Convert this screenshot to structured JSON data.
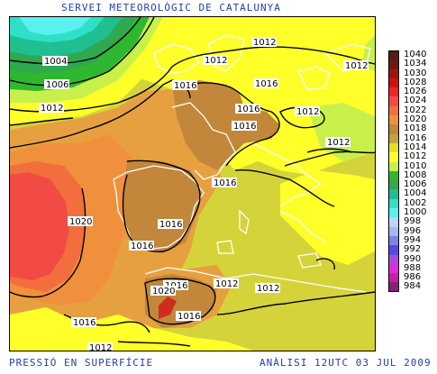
{
  "header": {
    "title": "SERVEI METEOROLÒGIC DE CATALUNYA"
  },
  "footer": {
    "left": "PRESSIÓ EN SUPERFÍCIE",
    "right": "ANÀLISI 12UTC 03 JUL 2009"
  },
  "legend": {
    "unit_values": [
      {
        "label": "1040",
        "color": "#5a1a10"
      },
      {
        "label": "1034",
        "color": "#6e1a12"
      },
      {
        "label": "1030",
        "color": "#a31410"
      },
      {
        "label": "1028",
        "color": "#d10f0f"
      },
      {
        "label": "1026",
        "color": "#f0242a"
      },
      {
        "label": "1024",
        "color": "#f24a45"
      },
      {
        "label": "1022",
        "color": "#f26e3c"
      },
      {
        "label": "1020",
        "color": "#f0903c"
      },
      {
        "label": "1018",
        "color": "#c2873a"
      },
      {
        "label": "1016",
        "color": "#bfa43c"
      },
      {
        "label": "1014",
        "color": "#e3e025"
      },
      {
        "label": "1012",
        "color": "#ffff2a"
      },
      {
        "label": "1010",
        "color": "#c8f04a"
      },
      {
        "label": "1008",
        "color": "#2fb82f"
      },
      {
        "label": "1006",
        "color": "#2fa84f"
      },
      {
        "label": "1004",
        "color": "#1fbf8f"
      },
      {
        "label": "1002",
        "color": "#2fe0c8"
      },
      {
        "label": "1000",
        "color": "#5af0f0"
      },
      {
        "label": "998",
        "color": "#bcd6f6"
      },
      {
        "label": "996",
        "color": "#a7b8f0"
      },
      {
        "label": "994",
        "color": "#7d85ea"
      },
      {
        "label": "992",
        "color": "#5a4ae0"
      },
      {
        "label": "990",
        "color": "#a84ae0"
      },
      {
        "label": "988",
        "color": "#e02ae0"
      },
      {
        "label": "986",
        "color": "#c81fa0"
      },
      {
        "label": "984",
        "color": "#8a1f7a"
      }
    ]
  },
  "map": {
    "isobar_labels": [
      "1004",
      "1006",
      "1012",
      "1012",
      "1012",
      "1012",
      "1012",
      "1012",
      "1016",
      "1016",
      "1016",
      "1016",
      "1016",
      "1016",
      "1016",
      "1016",
      "1016",
      "1016",
      "1020",
      "1020",
      "1012",
      "1012",
      "1012"
    ]
  }
}
